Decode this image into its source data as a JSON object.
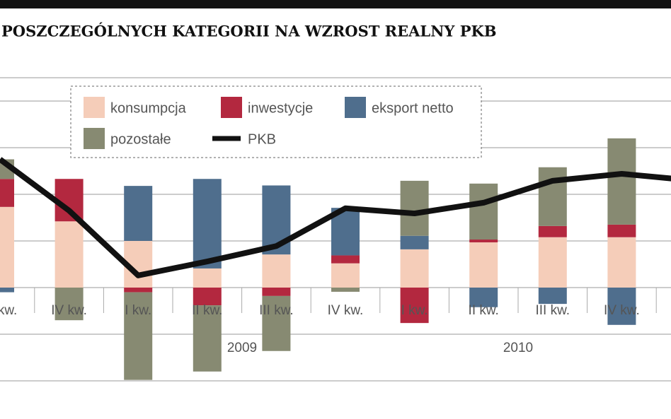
{
  "chart_data": {
    "type": "bar",
    "title": "POSZCZEGÓLNYCH KATEGORII NA WZROST REALNY PKB",
    "categories": [
      "III kw.",
      "IV kw.",
      "I kw.",
      "II kw.",
      "III kw.",
      "IV kw.",
      "I kw.",
      "II kw.",
      "III kw.",
      "IV kw.",
      null
    ],
    "annotations": [
      "2009",
      "2010"
    ],
    "series": [
      {
        "name": "konsumpcja",
        "color": "#f5cdb9",
        "values": [
          1.73,
          1.42,
          1.0,
          0.41,
          0.71,
          0.52,
          0.82,
          0.97,
          1.08,
          1.08,
          null
        ]
      },
      {
        "name": "inwestycje",
        "color": "#b3283f",
        "values": [
          0.6,
          0.91,
          -0.1,
          -0.38,
          -0.18,
          0.17,
          -0.76,
          0.06,
          0.24,
          0.27,
          null
        ]
      },
      {
        "name": "eksport netto",
        "color": "#4f6e8d",
        "values": [
          -0.1,
          0,
          1.18,
          1.92,
          1.48,
          1.02,
          0.29,
          -0.42,
          -0.35,
          -0.8,
          null
        ]
      },
      {
        "name": "pozostałe",
        "color": "#878a72",
        "values": [
          0.42,
          -0.7,
          -1.88,
          -1.42,
          -1.18,
          -0.09,
          1.18,
          1.2,
          1.26,
          1.85,
          null
        ]
      },
      {
        "name": "PKB",
        "color": "#111111",
        "type": "line",
        "values": [
          2.75,
          1.65,
          0.26,
          0.56,
          0.89,
          1.7,
          1.59,
          1.82,
          2.29,
          2.44,
          2.3
        ]
      }
    ],
    "ylim": [
      -2,
      4.5
    ],
    "yticks": [
      -2,
      -1,
      0,
      1,
      2,
      3,
      4
    ],
    "grid": true
  }
}
